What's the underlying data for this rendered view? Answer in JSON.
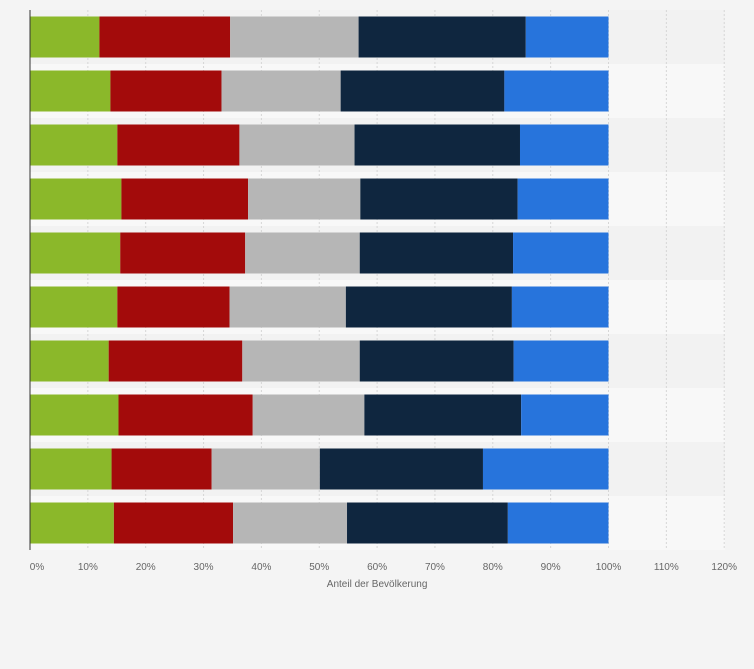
{
  "chart_data": {
    "type": "bar",
    "orientation": "horizontal",
    "stacked": true,
    "title": "",
    "xlabel": "Anteil der Bevölkerung",
    "ylabel": "",
    "xlim": [
      0,
      120
    ],
    "x_ticks": [
      0,
      10,
      20,
      30,
      40,
      50,
      60,
      70,
      80,
      90,
      100,
      110,
      120
    ],
    "x_tick_labels": [
      "0%",
      "10%",
      "20%",
      "30%",
      "40%",
      "50%",
      "60%",
      "70%",
      "80%",
      "90%",
      "100%",
      "110%",
      "120%"
    ],
    "grid": true,
    "legend": "none",
    "categories": [
      "",
      "",
      "",
      "",
      "",
      "",
      "",
      "",
      "",
      ""
    ],
    "series": [
      {
        "color": "#8bb82a",
        "values": [
          12.0,
          13.9,
          15.1,
          15.8,
          15.6,
          15.1,
          13.6,
          15.3,
          14.1,
          14.5
        ]
      },
      {
        "color": "#a30b0b",
        "values": [
          22.6,
          19.2,
          21.1,
          21.9,
          21.6,
          19.4,
          23.1,
          23.2,
          17.3,
          20.6
        ]
      },
      {
        "color": "#b6b6b6",
        "values": [
          22.2,
          20.6,
          19.9,
          19.4,
          19.8,
          20.1,
          20.3,
          19.3,
          18.7,
          19.7
        ]
      },
      {
        "color": "#0f263f",
        "values": [
          28.9,
          28.3,
          28.6,
          27.2,
          26.5,
          28.7,
          26.6,
          27.1,
          28.2,
          27.8
        ]
      },
      {
        "color": "#2774dc",
        "values": [
          14.3,
          18.0,
          15.3,
          15.7,
          16.5,
          16.7,
          16.4,
          15.1,
          21.7,
          17.4
        ]
      }
    ]
  }
}
